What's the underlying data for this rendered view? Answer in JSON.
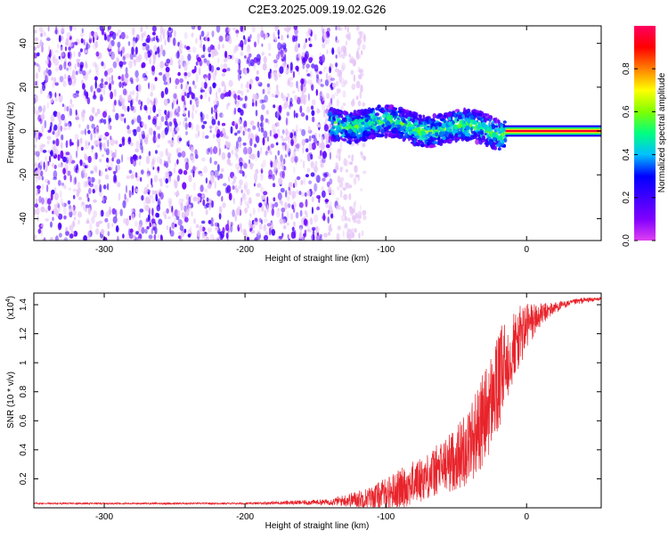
{
  "title": "C2E3.2025.009.19.02.G26",
  "colors": {
    "snr_line": "#e8242b",
    "colorbar_stops": [
      "#e040f0",
      "#8000ff",
      "#4000ff",
      "#0000ff",
      "#00c0ff",
      "#00ff80",
      "#80ff00",
      "#ffff00",
      "#ff8000",
      "#ff0000",
      "#ff0060"
    ]
  },
  "chart_data": [
    {
      "type": "heatmap",
      "xlabel": "Height of straight line (km)",
      "ylabel": "Frequency (Hz)",
      "xlim": [
        -350,
        53
      ],
      "ylim": [
        -50,
        48
      ],
      "x_ticks": [
        -300,
        -200,
        -100,
        0
      ],
      "y_ticks": [
        -40,
        -20,
        0,
        20,
        40
      ],
      "x_tick_labels": [
        "-300",
        "-200",
        "-100",
        "0"
      ],
      "y_tick_labels": [
        "-40",
        "-20",
        "0",
        "20",
        "40"
      ],
      "colorbar": {
        "label": "Normalized spectral amplitude",
        "range": [
          0,
          1
        ],
        "ticks": [
          0,
          0.2,
          0.4,
          0.6,
          0.8
        ],
        "tick_labels": [
          "0.0",
          "0.2",
          "0.4",
          "0.6",
          "0.8"
        ]
      },
      "regions": [
        {
          "description": "noise",
          "x_range": [
            -350,
            -135
          ],
          "freq_range": [
            -50,
            48
          ],
          "amplitude": 0.15
        },
        {
          "description": "weak noise fade",
          "x_range": [
            -135,
            -115
          ],
          "freq_range": [
            -50,
            48
          ],
          "amplitude": 0.05
        },
        {
          "description": "signal band",
          "x_range": [
            -140,
            -15
          ],
          "center_freq": 4,
          "end_center_freq": 0,
          "band_halfwidth": 7,
          "amplitude": 0.35
        },
        {
          "description": "tracked tone",
          "x_range": [
            -15,
            53
          ],
          "center_freq": 0,
          "band_halfwidth": 2,
          "amplitude": 0.95
        }
      ]
    },
    {
      "type": "line",
      "xlabel": "Height of straight line (km)",
      "ylabel": "SNR (10 * v/v)",
      "y_multiplier_label": "(x10",
      "y_multiplier_exp": "4",
      "y_multiplier_close": ")",
      "xlim": [
        -350,
        53
      ],
      "ylim": [
        0,
        1.48
      ],
      "x_ticks": [
        -300,
        -200,
        -100,
        0
      ],
      "y_ticks": [
        0.2,
        0.4,
        0.6,
        0.8,
        1.0,
        1.2,
        1.4
      ],
      "x_tick_labels": [
        "-300",
        "-200",
        "-100",
        "0"
      ],
      "y_tick_labels": [
        "0.2",
        "0.4",
        "0.6",
        "0.8",
        "1",
        "1.2",
        "1.4"
      ],
      "series": [
        {
          "envelope_x": [
            -350,
            -200,
            -140,
            -110,
            -90,
            -70,
            -50,
            -40,
            -30,
            -20,
            -15,
            -10,
            0,
            10,
            20,
            30,
            40,
            53
          ],
          "envelope_y": [
            0.03,
            0.03,
            0.04,
            0.07,
            0.13,
            0.22,
            0.34,
            0.45,
            0.62,
            0.85,
            1.0,
            1.1,
            1.25,
            1.33,
            1.38,
            1.41,
            1.43,
            1.44
          ],
          "noise_amplitude": [
            0.005,
            0.006,
            0.02,
            0.08,
            0.14,
            0.16,
            0.22,
            0.28,
            0.33,
            0.35,
            0.32,
            0.25,
            0.18,
            0.08,
            0.04,
            0.02,
            0.02,
            0.01
          ]
        }
      ]
    }
  ]
}
